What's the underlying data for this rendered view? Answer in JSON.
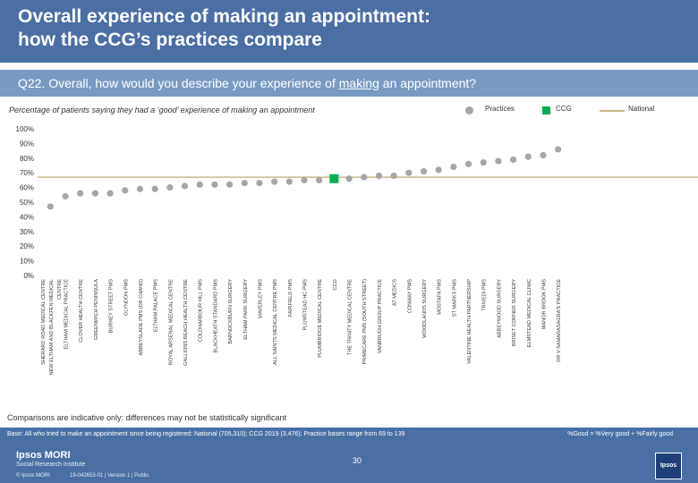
{
  "header": {
    "title": "Overall experience of making an appointment:\nhow the CCG’s practices compare"
  },
  "question": {
    "prefix": "Q22. Overall, how would you describe your experience of ",
    "underlined": "making",
    "suffix": " an appointment?"
  },
  "subtitle": "Percentage of patients saying they had a ‘good’ experience of making an appointment",
  "legend": {
    "practices": "Practices",
    "ccg": "CCG",
    "national": "National"
  },
  "colors": {
    "practice": "#a6a6a6",
    "ccg": "#00b050",
    "national": "#c8b98a"
  },
  "chart_data": {
    "type": "scatter",
    "title": "Percentage of patients saying they had a ‘good’ experience of making an appointment",
    "ylabel": "",
    "xlabel": "",
    "ylim": [
      0,
      100
    ],
    "y_ticks": [
      "0%",
      "10%",
      "20%",
      "30%",
      "40%",
      "50%",
      "60%",
      "70%",
      "80%",
      "90%",
      "100%"
    ],
    "national": 67,
    "categories": [
      "SHERARD ROAD MEDICAL CENTRE\nNEW ELTHAM AND BLACKFEN MEDICAL\nCENTRE",
      "ELTHAM MEDICAL PRACTICE",
      "CLOVER HEALTH CENTRE",
      "GREENWICH PENINSULA",
      "BURNEY STREET PMS",
      "GLYNDON PMS",
      "ABBEYSLADE PMS (DR CHAND)",
      "ELTHAM PALACE PMS",
      "ROYAL ARSENAL MEDICAL CENTRE",
      "GALLIONS REACH HEALTH CENTRE",
      "COLDHARBOUR HILL PMS",
      "BLACKHEATH STANDARD PMS",
      "BARNOCKBURN SURGERY",
      "ELTHAM PARK SURGERY",
      "WAVERLEY PMS",
      "ALL SAINTS MEDICAL CENTRE PMS",
      "FAIRFIELD PMS",
      "PLUMSTEAD HC PMS",
      "PLUMBRIDGE MEDICAL CENTRE",
      "CCG",
      "THE TRINITY MEDICAL CENTRE",
      "PRIMECARE PMS (SOUTH STREET)",
      "VANBRUGH GROUP PRACTICE",
      "AT MEDICS",
      "CONWAY PMS",
      "WOODLANDS SURGERY",
      "MOSTAFA PMS",
      "ST MARKS PMS",
      "VALENTINE HEALTH PARTNERSHIP",
      "TRIVEDI PMS",
      "ABBEYWOOD SURGERY",
      "BRISET CORNER SURGERY",
      "ELMSTEAD MEDICAL CLINIC",
      "MANOR BROOK PMS",
      "DR V SAMARASAGRA'S PRACTICE"
    ],
    "values": [
      47,
      54,
      56,
      56,
      56,
      58,
      59,
      59,
      60,
      61,
      62,
      62,
      62,
      63,
      63,
      64,
      64,
      65,
      65,
      66,
      66,
      67,
      68,
      68,
      70,
      71,
      72,
      74,
      76,
      77,
      78,
      79,
      81,
      82,
      86
    ],
    "ccg_index": 19
  },
  "note": "Comparisons are indicative only: differences may not be statistically significant",
  "footer": {
    "base": "Base: All who tried to make an appointment since being registered: National (705,310); CCG 2019 (3,476); Practice bases range from 69 to 139",
    "key": "%Good = %Very good + %Fairly good",
    "logo": "Ipsos MORI",
    "logo_sub": "Social Research Institute",
    "copyright": "© Ipsos MORI",
    "reference": "19-042653-01 | Version 1 | Public",
    "page": "30",
    "corner_logo": "Ipsos"
  }
}
